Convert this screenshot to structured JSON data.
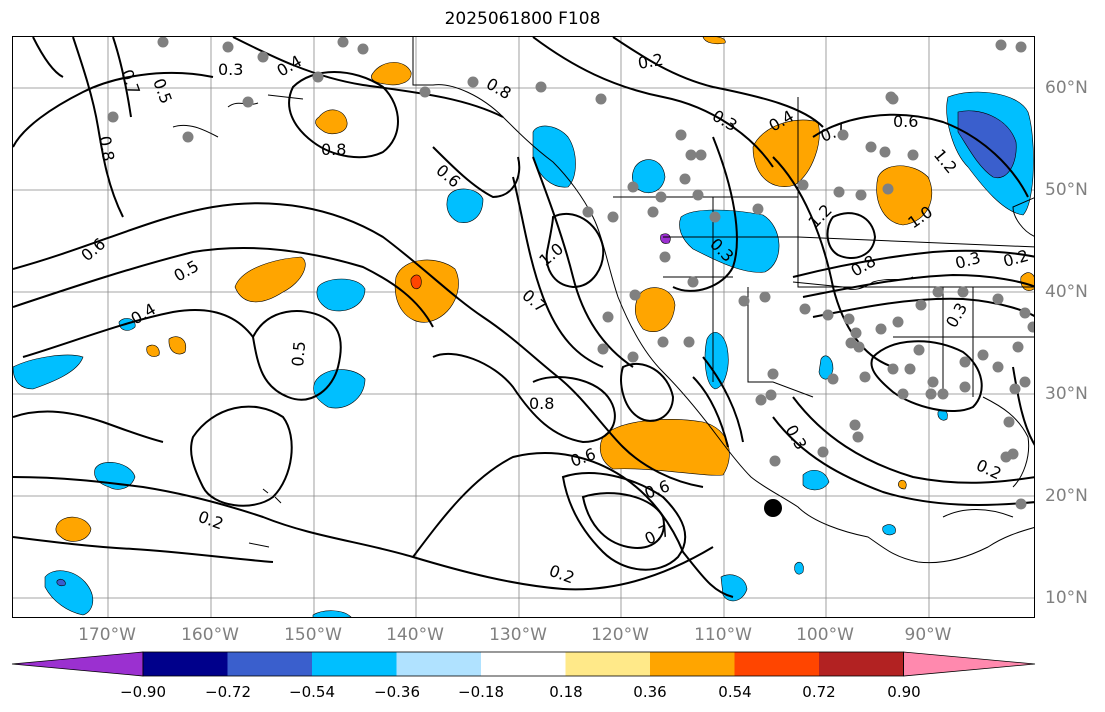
{
  "title": "2025061800 F108",
  "lon_labels": [
    "170°W",
    "160°W",
    "150°W",
    "140°W",
    "130°W",
    "120°W",
    "110°W",
    "100°W",
    "90°W"
  ],
  "lat_labels": [
    "60°N",
    "50°N",
    "40°N",
    "30°N",
    "20°N",
    "10°N"
  ],
  "contour_labels": [
    "0.7",
    "0.5",
    "0.8",
    "0.3",
    "0.4",
    "0.8",
    "0.2",
    "0.3",
    "0.8",
    "0.6",
    "0.6",
    "0.5",
    "0.4",
    "0.5",
    "1.0",
    "0.7",
    "0.8",
    "0.6",
    "0.6",
    "0.7",
    "0.2",
    "0.2",
    "0.3",
    "0.3",
    "0.2",
    "0.4",
    "0.7",
    "0.6",
    "1.2",
    "1.2",
    "1.0",
    "0.8",
    "0.3",
    "0.2",
    "0.3"
  ],
  "colorbar": {
    "ticks": [
      "−0.90",
      "−0.72",
      "−0.54",
      "−0.36",
      "−0.18",
      "0.18",
      "0.36",
      "0.54",
      "0.72",
      "0.90"
    ],
    "colors": [
      "#9b30d0",
      "#00008b",
      "#3a5fcd",
      "#00bfff",
      "#b0e2ff",
      "#ffffff",
      "#ffe989",
      "#ffa500",
      "#ff4500",
      "#b22222",
      "#ff89ae"
    ]
  },
  "colors": {
    "shade_pos_light": "#ffa500",
    "shade_pos_dark": "#ff4500",
    "shade_neg_light": "#00bfff",
    "shade_neg_dark": "#3a5fcd",
    "station_dot": "#808080",
    "gridline": "#888888"
  }
}
